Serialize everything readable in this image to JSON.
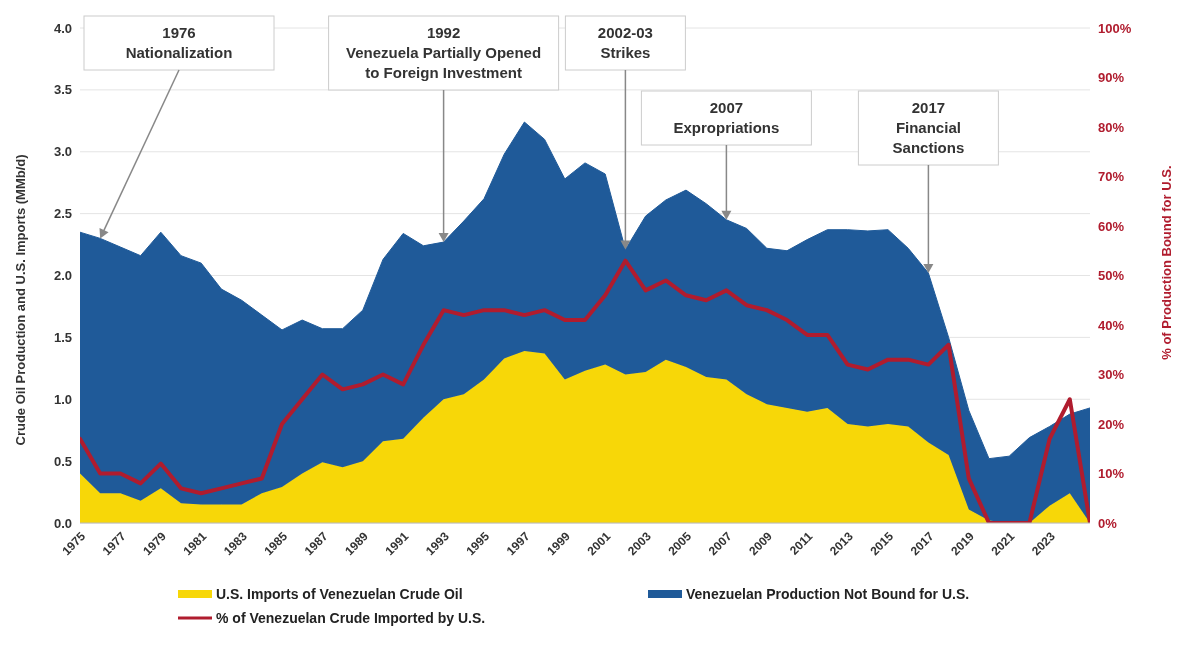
{
  "chart_data": {
    "type": "area",
    "ylabel": "Crude Oil Production and U.S. Imports (MMb/d)",
    "y2label": "% of Production Bound for U.S.",
    "x": [
      1975,
      1976,
      1977,
      1978,
      1979,
      1980,
      1981,
      1982,
      1983,
      1984,
      1985,
      1986,
      1987,
      1988,
      1989,
      1990,
      1991,
      1992,
      1993,
      1994,
      1995,
      1996,
      1997,
      1998,
      1999,
      2000,
      2001,
      2002,
      2003,
      2004,
      2005,
      2006,
      2007,
      2008,
      2009,
      2010,
      2011,
      2012,
      2013,
      2014,
      2015,
      2016,
      2017,
      2018,
      2019,
      2020,
      2021,
      2022,
      2023,
      2024,
      2025
    ],
    "xlim": [
      1975,
      2025
    ],
    "xticks": [
      1975,
      1977,
      1979,
      1981,
      1983,
      1985,
      1987,
      1989,
      1991,
      1993,
      1995,
      1997,
      1999,
      2001,
      2003,
      2005,
      2007,
      2009,
      2011,
      2013,
      2015,
      2017,
      2019,
      2021,
      2023
    ],
    "ylim": [
      0,
      4
    ],
    "yticks": [
      {
        "value": 0,
        "label": "0.0"
      },
      {
        "value": 0.5,
        "label": "0.5"
      },
      {
        "value": 1,
        "label": "1.0"
      },
      {
        "value": 1.5,
        "label": "1.5"
      },
      {
        "value": 2,
        "label": "2.0"
      },
      {
        "value": 2.5,
        "label": "2.5"
      },
      {
        "value": 3,
        "label": "3.0"
      },
      {
        "value": 3.5,
        "label": "3.5"
      },
      {
        "value": 4,
        "label": "4.0"
      }
    ],
    "y2lim": [
      0,
      100
    ],
    "y2ticks": [
      {
        "value": 0,
        "label": "0%"
      },
      {
        "value": 10,
        "label": "10%"
      },
      {
        "value": 20,
        "label": "20%"
      },
      {
        "value": 30,
        "label": "30%"
      },
      {
        "value": 40,
        "label": "40%"
      },
      {
        "value": 50,
        "label": "50%"
      },
      {
        "value": 60,
        "label": "60%"
      },
      {
        "value": 70,
        "label": "70%"
      },
      {
        "value": 80,
        "label": "80%"
      },
      {
        "value": 90,
        "label": "90%"
      },
      {
        "value": 100,
        "label": "100%"
      }
    ],
    "stacked": true,
    "grid": "y",
    "legend": "bottom",
    "series": [
      {
        "name": "U.S. Imports of Venezuelan Crude Oil",
        "color": "#f7d708",
        "values": [
          0.4,
          0.24,
          0.24,
          0.18,
          0.28,
          0.16,
          0.15,
          0.15,
          0.15,
          0.24,
          0.29,
          0.4,
          0.49,
          0.45,
          0.5,
          0.66,
          0.68,
          0.85,
          1.0,
          1.04,
          1.16,
          1.33,
          1.39,
          1.37,
          1.16,
          1.23,
          1.28,
          1.2,
          1.22,
          1.32,
          1.26,
          1.18,
          1.16,
          1.04,
          0.96,
          0.93,
          0.9,
          0.93,
          0.8,
          0.78,
          0.8,
          0.78,
          0.65,
          0.55,
          0.11,
          0.02,
          0,
          0,
          0.14,
          0.24,
          0
        ]
      },
      {
        "name": "Venezuelan Production Not Bound for U.S.",
        "color": "#1f5a99",
        "values": [
          1.95,
          2.06,
          1.99,
          1.98,
          2.07,
          2.0,
          1.95,
          1.74,
          1.65,
          1.44,
          1.27,
          1.24,
          1.08,
          1.12,
          1.22,
          1.47,
          1.66,
          1.39,
          1.27,
          1.4,
          1.46,
          1.65,
          1.85,
          1.73,
          1.62,
          1.68,
          1.54,
          1.01,
          1.26,
          1.29,
          1.43,
          1.4,
          1.29,
          1.34,
          1.26,
          1.27,
          1.39,
          1.44,
          1.57,
          1.58,
          1.57,
          1.44,
          1.37,
          0.95,
          0.8,
          0.5,
          0.54,
          0.69,
          0.64,
          0.64,
          0.93
        ]
      },
      {
        "name": "% of Venezuelan Crude Imported by U.S.",
        "type": "line",
        "axis": "y2",
        "color": "#b01c2e",
        "values": [
          17,
          10,
          10,
          8,
          12,
          7,
          6,
          7,
          8,
          9,
          20,
          25,
          30,
          27,
          28,
          30,
          28,
          36,
          43,
          42,
          43,
          43,
          42,
          43,
          41,
          41,
          46,
          53,
          47,
          49,
          46,
          45,
          47,
          44,
          43,
          41,
          38,
          38,
          32,
          31,
          33,
          33,
          32,
          36,
          9,
          0,
          0,
          0,
          17,
          25,
          0
        ]
      }
    ],
    "annotations": [
      {
        "text": "1976 Nationalization",
        "x": 1976,
        "y": 2.3
      },
      {
        "text": "1992 Venezuela Partially Opened to Foreign Investment",
        "x": 1993,
        "y": 2.27
      },
      {
        "text": "2002-03 Strikes",
        "x": 2002,
        "y": 2.21
      },
      {
        "text": "2007 Expropriations",
        "x": 2007,
        "y": 2.45
      },
      {
        "text": "2017 Financial Sanctions",
        "x": 2017,
        "y": 2.02
      }
    ]
  }
}
